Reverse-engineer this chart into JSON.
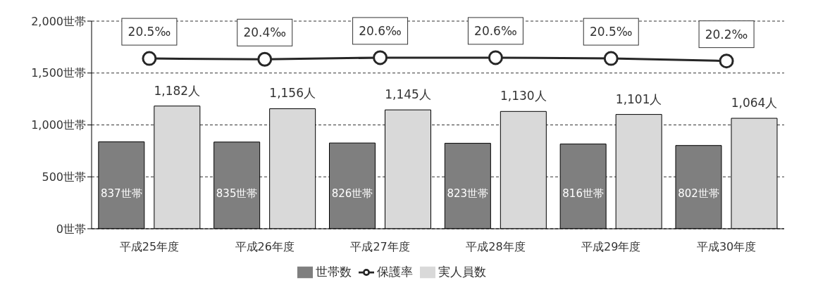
{
  "chart_data": {
    "type": "bar",
    "categories": [
      "平成25年度",
      "平成26年度",
      "平成27年度",
      "平成28年度",
      "平成29年度",
      "平成30年度"
    ],
    "series": [
      {
        "name": "世帯数",
        "color": "#7f7f7f",
        "values": [
          837,
          835,
          826,
          823,
          816,
          802
        ],
        "value_labels": [
          "837世帯",
          "835世帯",
          "826世帯",
          "823世帯",
          "816世帯",
          "802世帯"
        ]
      },
      {
        "name": "実人員数",
        "color": "#d9d9d9",
        "values": [
          1182,
          1156,
          1145,
          1130,
          1101,
          1064
        ],
        "value_labels": [
          "1,182人",
          "1,156人",
          "1,145人",
          "1,130人",
          "1,101人",
          "1,064人"
        ]
      },
      {
        "name": "保護率",
        "type": "line",
        "axis": "y2",
        "color": "#262626",
        "values": [
          20.5,
          20.4,
          20.6,
          20.6,
          20.5,
          20.2
        ],
        "value_labels": [
          "20.5‰",
          "20.4‰",
          "20.6‰",
          "20.6‰",
          "20.5‰",
          "20.2‰"
        ]
      }
    ],
    "ylim": [
      0,
      2000
    ],
    "yticks": [
      {
        "value": 0,
        "label": "0世帯"
      },
      {
        "value": 500,
        "label": "500世帯"
      },
      {
        "value": 1000,
        "label": "1,000世帯"
      },
      {
        "value": 1500,
        "label": "1,500世帯"
      },
      {
        "value": 2000,
        "label": "2,000世帯"
      }
    ],
    "y2lim": [
      0,
      25
    ],
    "grid": "y",
    "legend": "bottom",
    "marker": "circle"
  }
}
